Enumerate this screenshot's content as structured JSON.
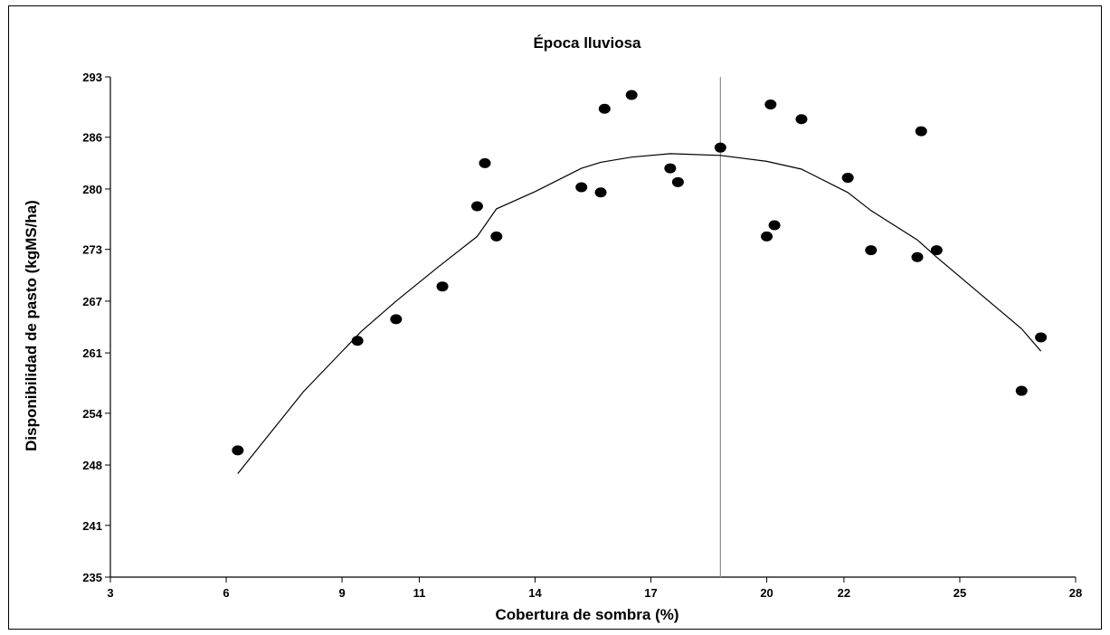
{
  "chart_data": {
    "type": "scatter",
    "title": "Época lluviosa",
    "xlabel": "Cobertura de sombra (%)",
    "ylabel": "Disponibilidad de pasto (kgMS/ha)",
    "xlim": [
      3,
      28
    ],
    "ylim": [
      235,
      293
    ],
    "x_ticks": [
      3,
      6,
      9,
      11,
      14,
      17,
      20,
      22,
      25,
      28
    ],
    "y_ticks": [
      235,
      241,
      248,
      254,
      261,
      267,
      273,
      280,
      286,
      293
    ],
    "grid": false,
    "legend": "none",
    "vertical_reference_line": 18.8,
    "points": [
      {
        "x": 6.3,
        "y": 249.7
      },
      {
        "x": 9.4,
        "y": 262.4
      },
      {
        "x": 10.4,
        "y": 264.9
      },
      {
        "x": 11.6,
        "y": 268.7
      },
      {
        "x": 12.5,
        "y": 278.0
      },
      {
        "x": 12.7,
        "y": 283.0
      },
      {
        "x": 13.0,
        "y": 274.5
      },
      {
        "x": 15.2,
        "y": 280.2
      },
      {
        "x": 15.7,
        "y": 279.6
      },
      {
        "x": 15.8,
        "y": 289.3
      },
      {
        "x": 16.5,
        "y": 290.9
      },
      {
        "x": 17.5,
        "y": 282.4
      },
      {
        "x": 17.7,
        "y": 280.8
      },
      {
        "x": 18.8,
        "y": 284.8
      },
      {
        "x": 20.0,
        "y": 274.5
      },
      {
        "x": 20.1,
        "y": 289.8
      },
      {
        "x": 20.2,
        "y": 275.8
      },
      {
        "x": 20.9,
        "y": 288.1
      },
      {
        "x": 22.1,
        "y": 281.3
      },
      {
        "x": 22.7,
        "y": 272.9
      },
      {
        "x": 23.9,
        "y": 272.1
      },
      {
        "x": 24.0,
        "y": 286.7
      },
      {
        "x": 24.4,
        "y": 272.9
      },
      {
        "x": 26.6,
        "y": 256.6
      },
      {
        "x": 27.1,
        "y": 262.8
      }
    ],
    "fit_curve": [
      {
        "x": 6.3,
        "y": 247.0
      },
      {
        "x": 8.0,
        "y": 256.5
      },
      {
        "x": 9.5,
        "y": 263.5
      },
      {
        "x": 10.4,
        "y": 267.0
      },
      {
        "x": 11.5,
        "y": 271.0
      },
      {
        "x": 12.5,
        "y": 274.5
      },
      {
        "x": 13.0,
        "y": 277.7
      },
      {
        "x": 14.0,
        "y": 279.7
      },
      {
        "x": 15.2,
        "y": 282.4
      },
      {
        "x": 15.7,
        "y": 283.1
      },
      {
        "x": 16.5,
        "y": 283.7
      },
      {
        "x": 17.5,
        "y": 284.1
      },
      {
        "x": 18.8,
        "y": 283.9
      },
      {
        "x": 20.0,
        "y": 283.2
      },
      {
        "x": 20.9,
        "y": 282.3
      },
      {
        "x": 22.1,
        "y": 279.6
      },
      {
        "x": 22.7,
        "y": 277.5
      },
      {
        "x": 23.9,
        "y": 274.1
      },
      {
        "x": 24.4,
        "y": 272.1
      },
      {
        "x": 26.6,
        "y": 263.8
      },
      {
        "x": 27.1,
        "y": 261.2
      }
    ]
  }
}
